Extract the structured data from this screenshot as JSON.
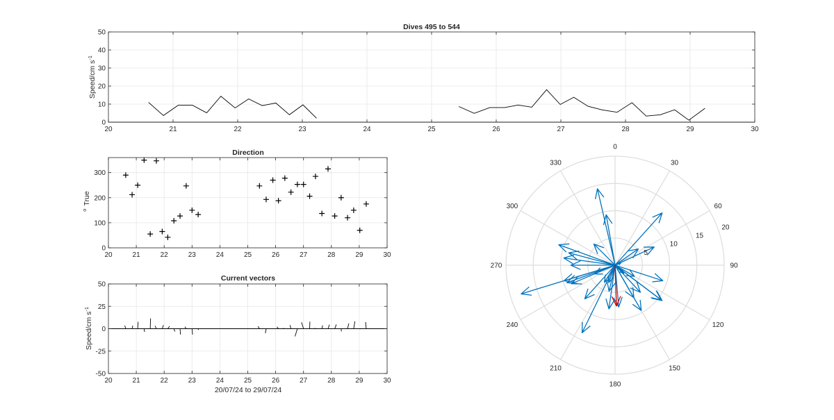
{
  "figure": {
    "speed_title": "Dives 495 to 544",
    "speed_ylabel": "Speed/cm s",
    "speed_ylabel_exp": "-1",
    "direction_title": "Direction",
    "direction_ylabel_deg": "o",
    "direction_ylabel": "True",
    "vectors_title": "Current vectors",
    "vectors_ylabel": "Speed/cm s",
    "vectors_ylabel_exp": "-1",
    "vectors_xlabel": "20/07/24 to 29/07/24"
  },
  "chart_data": [
    {
      "type": "line",
      "title": "Dives 495 to 544",
      "ylabel": "Speed/cm s-1",
      "xlim": [
        20,
        30
      ],
      "ylim": [
        0,
        50
      ],
      "x_ticks": [
        20,
        21,
        22,
        23,
        24,
        25,
        26,
        27,
        28,
        29,
        30
      ],
      "y_ticks": [
        0,
        10,
        20,
        30,
        40,
        50
      ],
      "grid": true,
      "color": "#000000",
      "segments": [
        [
          [
            20.62,
            11
          ],
          [
            20.85,
            3.7
          ],
          [
            21.08,
            9.4
          ],
          [
            21.3,
            9.4
          ],
          [
            21.52,
            5.2
          ],
          [
            21.74,
            14.4
          ],
          [
            21.96,
            7.9
          ],
          [
            22.17,
            12.9
          ],
          [
            22.38,
            9.2
          ],
          [
            22.59,
            10.6
          ],
          [
            22.8,
            4.1
          ],
          [
            23.01,
            9.6
          ],
          [
            23.22,
            2.2
          ]
        ],
        [
          [
            25.42,
            8.7
          ],
          [
            25.66,
            4.9
          ],
          [
            25.9,
            8.1
          ],
          [
            26.13,
            8.1
          ],
          [
            26.34,
            9.5
          ],
          [
            26.55,
            8.3
          ],
          [
            26.78,
            18
          ],
          [
            26.99,
            9.8
          ],
          [
            27.2,
            13.8
          ],
          [
            27.42,
            8.8
          ],
          [
            27.64,
            6.8
          ],
          [
            27.87,
            5.5
          ],
          [
            28.1,
            10.8
          ],
          [
            28.32,
            3.4
          ],
          [
            28.54,
            4.1
          ],
          [
            28.76,
            6.9
          ],
          [
            28.98,
            1.1
          ],
          [
            29.23,
            7.7
          ]
        ]
      ]
    },
    {
      "type": "scatter",
      "title": "Direction",
      "ylabel": "o True",
      "xlim": [
        20,
        30
      ],
      "ylim": [
        0,
        360
      ],
      "x_ticks": [
        20,
        21,
        22,
        23,
        24,
        25,
        26,
        27,
        28,
        29,
        30
      ],
      "y_ticks": [
        0,
        100,
        200,
        300
      ],
      "grid": true,
      "marker": "+",
      "x": [
        20.62,
        20.85,
        21.05,
        21.28,
        21.5,
        21.72,
        21.93,
        22.13,
        22.35,
        22.57,
        22.79,
        23.0,
        23.22,
        25.42,
        25.66,
        25.9,
        26.1,
        26.33,
        26.55,
        26.78,
        27.0,
        27.22,
        27.43,
        27.66,
        27.88,
        28.12,
        28.35,
        28.58,
        28.8,
        29.02,
        29.25
      ],
      "y": [
        290,
        212,
        250,
        350,
        55,
        347,
        65,
        42,
        108,
        127,
        247,
        150,
        133,
        247,
        193,
        270,
        188,
        278,
        222,
        253,
        253,
        206,
        285,
        137,
        315,
        127,
        200,
        120,
        150,
        70,
        175
      ]
    },
    {
      "type": "line",
      "subtype": "vector",
      "title": "Current vectors",
      "ylabel": "Speed/cm s-1",
      "xlabel": "20/07/24 to 29/07/24",
      "xlim": [
        20,
        30
      ],
      "ylim": [
        -50,
        50
      ],
      "x_ticks": [
        20,
        21,
        22,
        23,
        24,
        25,
        26,
        27,
        28,
        29,
        30
      ],
      "y_ticks": [
        -50,
        -25,
        0,
        25,
        50
      ],
      "grid": true,
      "color": "#000000",
      "vectors": [
        {
          "x": 20.62,
          "u": -1.0,
          "v": 3.5
        },
        {
          "x": 20.85,
          "u": 0.7,
          "v": 3.4
        },
        {
          "x": 21.05,
          "u": 0.5,
          "v": 7.7
        },
        {
          "x": 21.28,
          "u": 0.5,
          "v": -3.5
        },
        {
          "x": 21.5,
          "u": 0.4,
          "v": 11.5
        },
        {
          "x": 21.72,
          "u": -1.4,
          "v": 3.2
        },
        {
          "x": 21.93,
          "u": 1.4,
          "v": 4.0
        },
        {
          "x": 22.13,
          "u": 2.0,
          "v": 2.8
        },
        {
          "x": 22.35,
          "u": 1.1,
          "v": -3.2
        },
        {
          "x": 22.57,
          "u": 0.5,
          "v": -6.5
        },
        {
          "x": 22.79,
          "u": -1.5,
          "v": 2.2
        },
        {
          "x": 23.0,
          "u": 0.6,
          "v": -6.5
        },
        {
          "x": 23.22,
          "u": 0.3,
          "v": -1.3
        },
        {
          "x": 25.42,
          "u": -1.7,
          "v": 2.7
        },
        {
          "x": 25.66,
          "u": -0.9,
          "v": -5.1
        },
        {
          "x": 25.9,
          "u": -0.2,
          "v": 0.3
        },
        {
          "x": 26.1,
          "u": -1.6,
          "v": 2.1
        },
        {
          "x": 26.33,
          "u": -2.0,
          "v": 0.4
        },
        {
          "x": 26.55,
          "u": -1.1,
          "v": 4.0
        },
        {
          "x": 26.78,
          "u": -2.6,
          "v": -8.5
        },
        {
          "x": 27.0,
          "u": -2.2,
          "v": 7.2
        },
        {
          "x": 27.22,
          "u": 0.3,
          "v": 7.9
        },
        {
          "x": 27.43,
          "u": -0.4,
          "v": 0.8
        },
        {
          "x": 27.66,
          "u": 0.8,
          "v": 3.7
        },
        {
          "x": 27.88,
          "u": 1.6,
          "v": 4.5
        },
        {
          "x": 28.12,
          "u": 1.8,
          "v": 4.7
        },
        {
          "x": 28.35,
          "u": 0.3,
          "v": -3.1
        },
        {
          "x": 28.58,
          "u": 1.4,
          "v": 5.8
        },
        {
          "x": 28.8,
          "u": 1.4,
          "v": 8.3
        },
        {
          "x": 29.02,
          "u": 0.8,
          "v": 0.4
        },
        {
          "x": 29.25,
          "u": -0.7,
          "v": 7.4
        }
      ]
    },
    {
      "type": "scatter",
      "subtype": "compass",
      "theta_zero": "top",
      "theta_direction": "clockwise",
      "theta_ticks": [
        0,
        30,
        60,
        90,
        120,
        150,
        180,
        210,
        240,
        270,
        300,
        330
      ],
      "theta_tick_labels": [
        "0",
        "30",
        "60",
        "90",
        "120",
        "150",
        "180",
        "210",
        "240",
        "270",
        "300",
        "330"
      ],
      "r_ticks": [
        5,
        10,
        15,
        20
      ],
      "r_tick_labels": [
        "5",
        "10",
        "15",
        "20"
      ],
      "rlim": [
        0,
        20
      ],
      "colors": {
        "vectors": "#0072BD",
        "mean": "#D00000"
      },
      "vectors": [
        {
          "direction": 290,
          "speed": 11
        },
        {
          "direction": 212,
          "speed": 3.7
        },
        {
          "direction": 250,
          "speed": 9.4
        },
        {
          "direction": 350,
          "speed": 9.4
        },
        {
          "direction": 55,
          "speed": 5.2
        },
        {
          "direction": 347,
          "speed": 14.4
        },
        {
          "direction": 65,
          "speed": 7.9
        },
        {
          "direction": 42,
          "speed": 12.9
        },
        {
          "direction": 108,
          "speed": 9.2
        },
        {
          "direction": 127,
          "speed": 10.6
        },
        {
          "direction": 247,
          "speed": 4.1
        },
        {
          "direction": 150,
          "speed": 9.6
        },
        {
          "direction": 133,
          "speed": 2.2
        },
        {
          "direction": 247,
          "speed": 8.7
        },
        {
          "direction": 193,
          "speed": 4.9
        },
        {
          "direction": 270,
          "speed": 8.1
        },
        {
          "direction": 188,
          "speed": 8.1
        },
        {
          "direction": 278,
          "speed": 9.5
        },
        {
          "direction": 222,
          "speed": 8.3
        },
        {
          "direction": 253,
          "speed": 18
        },
        {
          "direction": 253,
          "speed": 9.8
        },
        {
          "direction": 206,
          "speed": 13.8
        },
        {
          "direction": 285,
          "speed": 8.8
        },
        {
          "direction": 137,
          "speed": 6.8
        },
        {
          "direction": 315,
          "speed": 5.5
        },
        {
          "direction": 127,
          "speed": 10.8
        },
        {
          "direction": 200,
          "speed": 3.4
        },
        {
          "direction": 120,
          "speed": 4.1
        },
        {
          "direction": 150,
          "speed": 6.9
        },
        {
          "direction": 70,
          "speed": 1.1
        },
        {
          "direction": 175,
          "speed": 7.7
        }
      ],
      "mean_vector": {
        "direction": 178,
        "speed": 7.5
      }
    }
  ]
}
